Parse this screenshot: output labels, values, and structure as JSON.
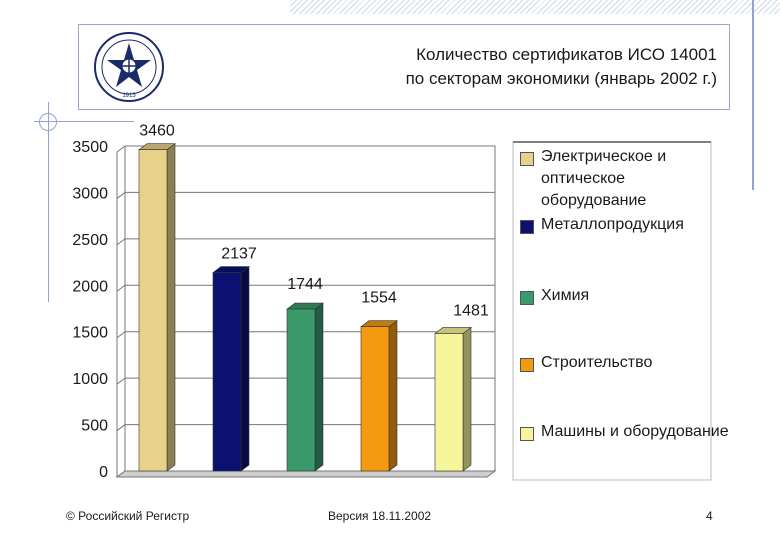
{
  "header": {
    "title_line1": "Количество сертификатов ИСО 14001",
    "title_line2": "по секторам экономики (январь 2002 г.)"
  },
  "logo": {
    "year": "1913"
  },
  "chart_data": {
    "type": "bar",
    "categories": [
      "Электрическое и оптическое оборудование",
      "Металлопродукция",
      "Химия",
      "Строительство",
      "Машины и оборудование"
    ],
    "values": [
      3460,
      2137,
      1744,
      1554,
      1481
    ],
    "data_labels": [
      "3460",
      "2137",
      "1744",
      "1554",
      "1481"
    ],
    "colors": [
      "#e8d28a",
      "#0b1170",
      "#3a9a6a",
      "#f59a10",
      "#f7f59a"
    ],
    "ylim": [
      0,
      3500
    ],
    "yticks": [
      "0",
      "500",
      "1000",
      "1500",
      "2000",
      "2500",
      "3000",
      "3500"
    ],
    "grid": true,
    "legend_position": "right",
    "style": "3d-bars"
  },
  "legend": {
    "items": [
      "Электрическое и оптическое оборудование",
      "Металлопродукция",
      "Химия",
      "Строительство",
      "Машины и оборудование"
    ]
  },
  "footer": {
    "copyright": "© Российский Регистр",
    "version": "Версия 18.11.2002",
    "page": "4"
  }
}
